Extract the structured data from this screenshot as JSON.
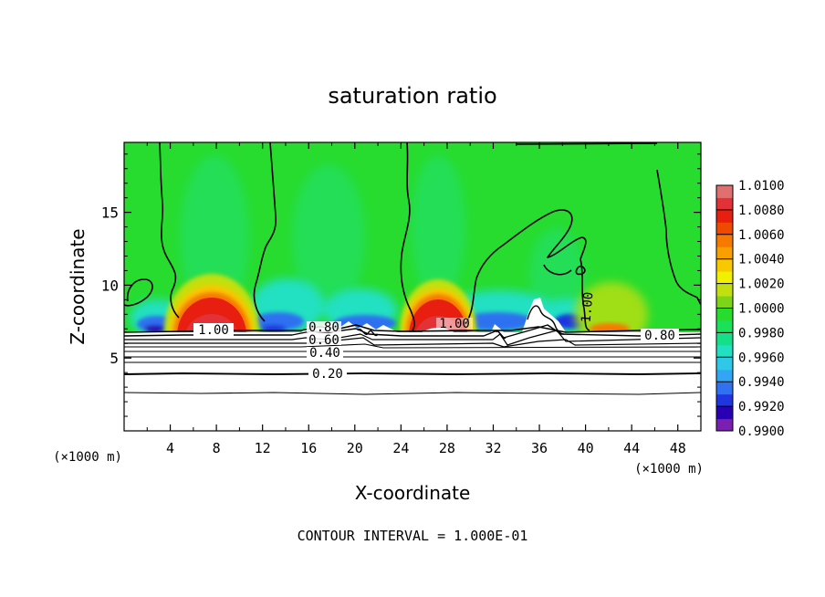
{
  "chart_data": {
    "type": "heatmap",
    "title": "saturation ratio",
    "xlabel": "X-coordinate",
    "ylabel": "Z-coordinate",
    "x_unit_label": "(×1000 m)",
    "x_unit_label_right": "(×1000 m)",
    "footer": "CONTOUR INTERVAL = 1.000E-01",
    "xlim": [
      0,
      50
    ],
    "ylim": [
      0,
      19.8
    ],
    "x_ticks": [
      4,
      8,
      12,
      16,
      20,
      24,
      28,
      32,
      36,
      40,
      44,
      48
    ],
    "x_tick_labels": [
      "4",
      "8",
      "12",
      "16",
      "20",
      "24",
      "28",
      "32",
      "36",
      "40",
      "44",
      "48"
    ],
    "y_ticks": [
      5,
      10,
      15
    ],
    "y_tick_labels": [
      "5",
      "10",
      "15"
    ],
    "colorbar": {
      "min": 0.99,
      "max": 1.01,
      "levels": [
        0.99,
        0.991,
        0.992,
        0.993,
        0.994,
        0.995,
        0.996,
        0.997,
        0.998,
        0.999,
        1.0,
        1.001,
        1.002,
        1.003,
        1.004,
        1.005,
        1.006,
        1.007,
        1.008,
        1.009,
        1.01
      ],
      "labels": [
        "0.9900",
        "0.9920",
        "0.9940",
        "0.9960",
        "0.9980",
        "1.0000",
        "1.0020",
        "1.0040",
        "1.0060",
        "1.0080",
        "1.0100"
      ],
      "colors": [
        "#7a1fb0",
        "#2a00b5",
        "#1f35e0",
        "#2f71f0",
        "#32a6f5",
        "#30c8e8",
        "#22e0c2",
        "#15e08a",
        "#1ae05a",
        "#27dc2f",
        "#7dd51a",
        "#c2e010",
        "#f0f000",
        "#f8c800",
        "#f8a000",
        "#f77a00",
        "#f04a00",
        "#e81e10",
        "#e23238",
        "#e06f6f"
      ]
    },
    "contour_labels": [
      "1.00",
      "0.80",
      "0.60",
      "0.40",
      "0.20",
      "1.00",
      "1.00",
      "0.80"
    ]
  }
}
